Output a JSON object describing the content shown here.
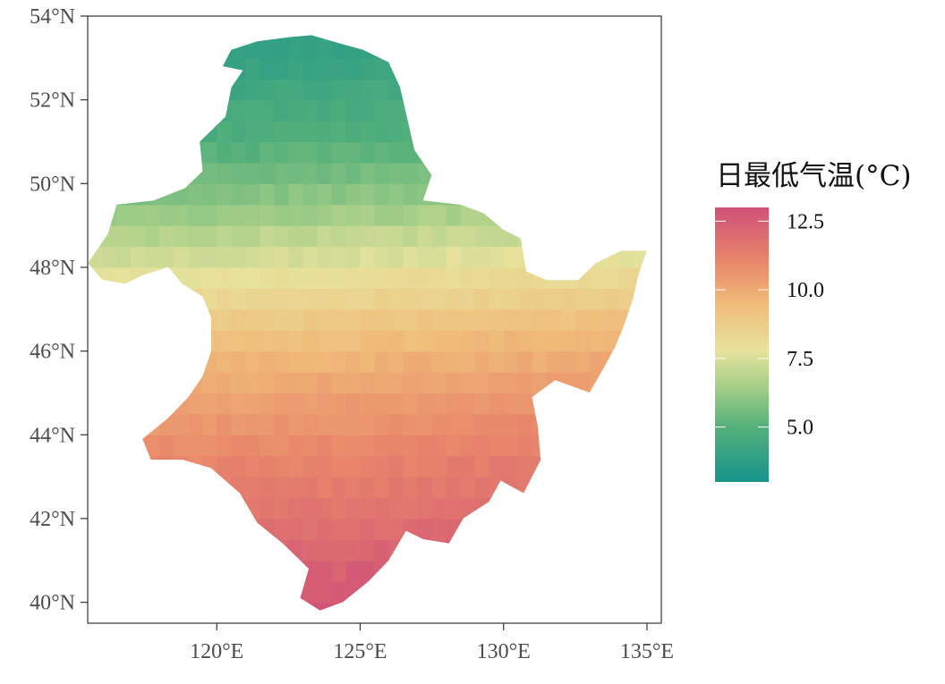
{
  "chart_data": {
    "type": "heatmap",
    "subtype": "choropleth-map",
    "title": "",
    "xlabel": "",
    "ylabel": "",
    "x_range": [
      115.5,
      135.5
    ],
    "y_range": [
      39.5,
      54.0
    ],
    "x_ticks": [
      {
        "value": 120,
        "label": "120°E"
      },
      {
        "value": 125,
        "label": "125°E"
      },
      {
        "value": 130,
        "label": "130°E"
      },
      {
        "value": 135,
        "label": "135°E"
      }
    ],
    "y_ticks": [
      {
        "value": 40,
        "label": "40°N"
      },
      {
        "value": 42,
        "label": "42°N"
      },
      {
        "value": 44,
        "label": "44°N"
      },
      {
        "value": 46,
        "label": "46°N"
      },
      {
        "value": 48,
        "label": "48°N"
      },
      {
        "value": 50,
        "label": "50°N"
      },
      {
        "value": 52,
        "label": "52°N"
      },
      {
        "value": 54,
        "label": "54°N"
      }
    ],
    "grid": false,
    "cell_size_deg": 0.5,
    "value_range": [
      3.0,
      13.0
    ],
    "legend": {
      "title": "日最低气温(°C)",
      "placement": "right",
      "ticks": [
        {
          "value": 5.0,
          "label": "5.0"
        },
        {
          "value": 7.5,
          "label": "7.5"
        },
        {
          "value": 10.0,
          "label": "10.0"
        },
        {
          "value": 12.5,
          "label": "12.5"
        }
      ]
    },
    "color_stops": [
      {
        "value": 3.0,
        "color": "#17948c"
      },
      {
        "value": 5.0,
        "color": "#54b07a"
      },
      {
        "value": 6.5,
        "color": "#a7cf88"
      },
      {
        "value": 7.8,
        "color": "#e7e29c"
      },
      {
        "value": 9.5,
        "color": "#f0bb78"
      },
      {
        "value": 11.0,
        "color": "#e9886a"
      },
      {
        "value": 13.0,
        "color": "#cf4f78"
      }
    ],
    "temperature_profile": [
      {
        "lat": 40.0,
        "value": 12.8
      },
      {
        "lat": 42.0,
        "value": 11.8
      },
      {
        "lat": 44.0,
        "value": 10.9
      },
      {
        "lat": 46.0,
        "value": 9.6
      },
      {
        "lat": 47.5,
        "value": 8.2
      },
      {
        "lat": 48.5,
        "value": 7.3
      },
      {
        "lat": 49.5,
        "value": 6.2
      },
      {
        "lat": 51.0,
        "value": 5.0
      },
      {
        "lat": 53.5,
        "value": 3.9
      }
    ],
    "region_outline": [
      [
        123.3,
        53.55
      ],
      [
        124.3,
        53.35
      ],
      [
        125.1,
        53.2
      ],
      [
        126.0,
        52.9
      ],
      [
        126.4,
        52.3
      ],
      [
        126.7,
        51.4
      ],
      [
        126.9,
        50.8
      ],
      [
        127.5,
        50.2
      ],
      [
        127.2,
        49.6
      ],
      [
        128.5,
        49.5
      ],
      [
        129.3,
        49.3
      ],
      [
        130.0,
        48.9
      ],
      [
        130.6,
        48.7
      ],
      [
        130.8,
        47.9
      ],
      [
        131.5,
        47.7
      ],
      [
        132.6,
        47.7
      ],
      [
        133.2,
        48.1
      ],
      [
        134.1,
        48.4
      ],
      [
        135.0,
        48.4
      ],
      [
        134.7,
        47.8
      ],
      [
        134.5,
        47.2
      ],
      [
        134.2,
        46.6
      ],
      [
        133.9,
        46.1
      ],
      [
        133.5,
        45.6
      ],
      [
        133.0,
        45.0
      ],
      [
        131.8,
        45.3
      ],
      [
        131.0,
        44.9
      ],
      [
        131.2,
        44.2
      ],
      [
        131.3,
        43.4
      ],
      [
        130.7,
        42.6
      ],
      [
        129.9,
        42.9
      ],
      [
        129.5,
        42.4
      ],
      [
        128.6,
        42.0
      ],
      [
        128.1,
        41.4
      ],
      [
        127.2,
        41.5
      ],
      [
        126.6,
        41.7
      ],
      [
        126.0,
        41.0
      ],
      [
        125.3,
        40.5
      ],
      [
        124.4,
        40.0
      ],
      [
        123.6,
        39.8
      ],
      [
        122.9,
        40.1
      ],
      [
        123.2,
        40.8
      ],
      [
        122.3,
        41.4
      ],
      [
        121.4,
        41.9
      ],
      [
        120.8,
        42.6
      ],
      [
        119.8,
        43.2
      ],
      [
        118.8,
        43.4
      ],
      [
        117.7,
        43.4
      ],
      [
        117.4,
        43.9
      ],
      [
        118.3,
        44.4
      ],
      [
        119.0,
        44.9
      ],
      [
        119.5,
        45.4
      ],
      [
        119.8,
        46.0
      ],
      [
        119.8,
        46.8
      ],
      [
        119.5,
        47.3
      ],
      [
        118.8,
        47.6
      ],
      [
        118.3,
        48.0
      ],
      [
        117.4,
        47.8
      ],
      [
        116.8,
        47.6
      ],
      [
        116.0,
        47.7
      ],
      [
        115.5,
        48.1
      ],
      [
        115.9,
        48.5
      ],
      [
        116.2,
        48.8
      ],
      [
        116.5,
        49.5
      ],
      [
        117.8,
        49.6
      ],
      [
        118.9,
        49.9
      ],
      [
        119.5,
        50.3
      ],
      [
        119.4,
        51.0
      ],
      [
        120.3,
        51.6
      ],
      [
        120.5,
        52.3
      ],
      [
        120.9,
        52.7
      ],
      [
        120.2,
        52.8
      ],
      [
        120.5,
        53.2
      ],
      [
        121.4,
        53.4
      ],
      [
        122.5,
        53.5
      ],
      [
        123.3,
        53.55
      ]
    ]
  }
}
